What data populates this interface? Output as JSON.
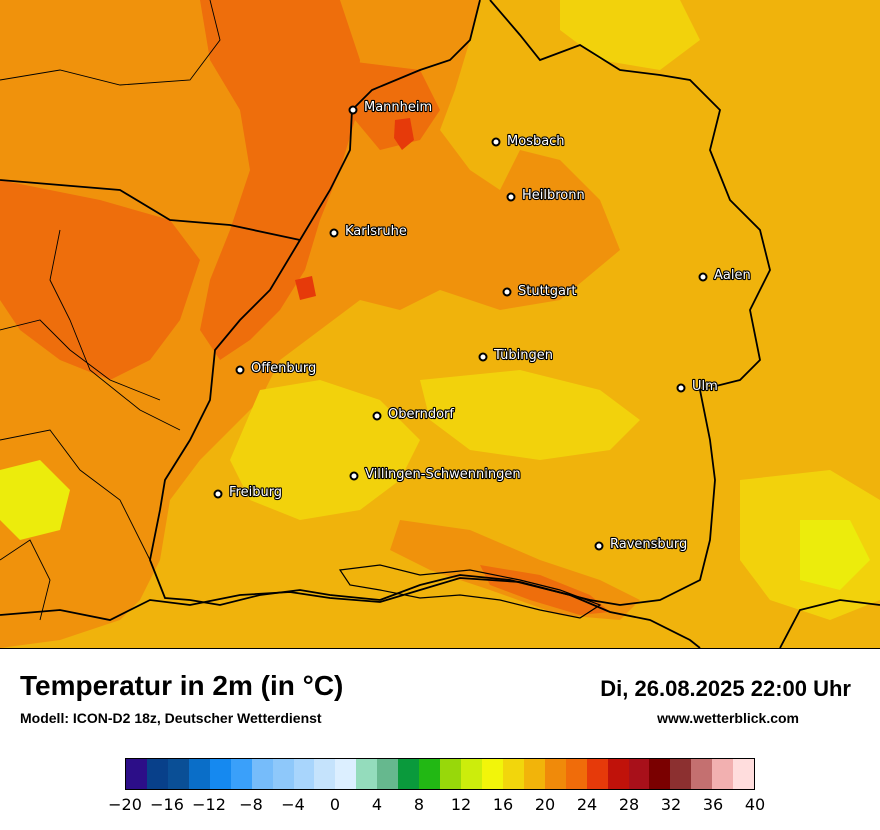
{
  "title": "Temperatur in 2m (in °C)",
  "subtitle": "Modell: ICON-D2 18z, Deutscher Wetterdienst",
  "datetime": "Di, 26.08.2025 22:00 Uhr",
  "website": "www.wetterblick.com",
  "cities": [
    {
      "name": "Mannheim",
      "icon": "city-marker-icon"
    },
    {
      "name": "Mosbach",
      "icon": "city-marker-icon"
    },
    {
      "name": "Heilbronn",
      "icon": "city-marker-icon"
    },
    {
      "name": "Karlsruhe",
      "icon": "city-marker-icon"
    },
    {
      "name": "Aalen",
      "icon": "city-marker-icon"
    },
    {
      "name": "Stuttgart",
      "icon": "city-marker-icon"
    },
    {
      "name": "Tübingen",
      "icon": "city-marker-icon"
    },
    {
      "name": "Offenburg",
      "icon": "city-marker-icon"
    },
    {
      "name": "Ulm",
      "icon": "city-marker-icon"
    },
    {
      "name": "Oberndorf",
      "icon": "city-marker-icon"
    },
    {
      "name": "Villingen-Schwenningen",
      "icon": "city-marker-icon"
    },
    {
      "name": "Freiburg",
      "icon": "city-marker-icon"
    },
    {
      "name": "Ravensburg",
      "icon": "city-marker-icon"
    }
  ],
  "colorbar": {
    "tick_labels": [
      "−20",
      "−16",
      "−12",
      "−8",
      "−4",
      "0",
      "4",
      "8",
      "12",
      "16",
      "20",
      "24",
      "28",
      "32",
      "36",
      "40"
    ],
    "colors": [
      "#2c0e88",
      "#08408a",
      "#0a4f96",
      "#0a6ec8",
      "#1589f0",
      "#3aa0fa",
      "#76bcfa",
      "#8ec8fa",
      "#a8d5fc",
      "#c5e3fc",
      "#dcefff",
      "#94dcbc",
      "#66b88e",
      "#0a9a3c",
      "#22b814",
      "#98d80a",
      "#cced0c",
      "#f2f50a",
      "#f2d60c",
      "#f2b40a",
      "#f08a0a",
      "#f06c0a",
      "#e63a0a",
      "#c0120a",
      "#a8101a",
      "#7a0000",
      "#8c3030",
      "#c47070",
      "#f2b0b0",
      "#ffdddd"
    ]
  },
  "map_colors": {
    "base": "#f0b30c",
    "warm": "#f0920c",
    "hot": "#ee6e0c",
    "cool": "#f2d20c",
    "cooler": "#ecec0c",
    "hottest": "#e63a0a"
  }
}
